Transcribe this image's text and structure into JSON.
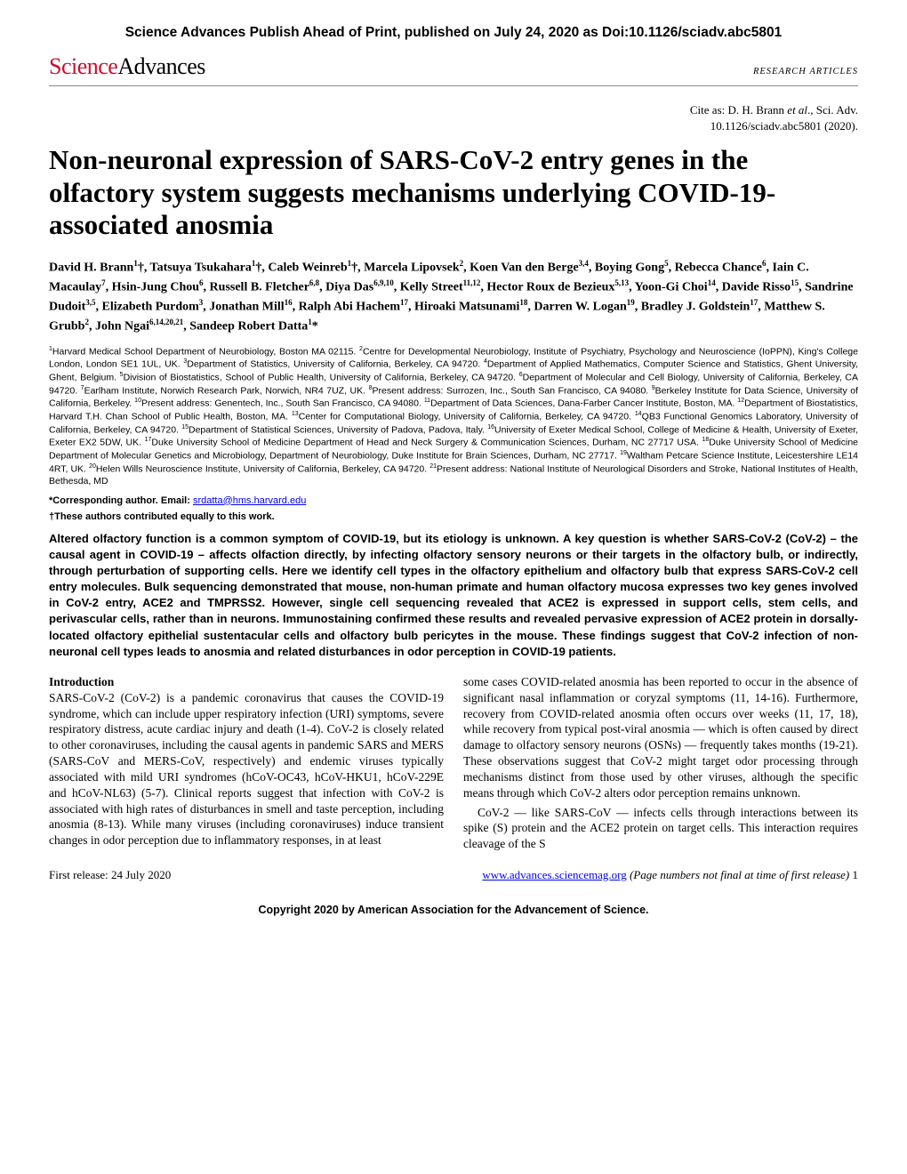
{
  "header": {
    "ahead_of_print": "Science Advances Publish Ahead of Print, published on July 24, 2020 as Doi:10.1126/sciadv.abc5801",
    "journal_red": "Science",
    "journal_black": "Advances",
    "article_type": "RESEARCH ARTICLES"
  },
  "citation": {
    "line1_pre": "Cite as: D. H. Brann ",
    "line1_etal": "et al",
    "line1_post": "., Sci. Adv.",
    "line2": "10.1126/sciadv.abc5801 (2020)."
  },
  "title": "Non-neuronal expression of SARS-CoV-2 entry genes in the olfactory system suggests mechanisms underlying COVID-19-associated anosmia",
  "authors_html": "David H. Brann<sup>1</sup>†, Tatsuya Tsukahara<sup>1</sup>†, Caleb Weinreb<sup>1</sup>†, Marcela Lipovsek<sup>2</sup>, Koen Van den Berge<sup>3,4</sup>, Boying Gong<sup>5</sup>, Rebecca Chance<sup>6</sup>, Iain C. Macaulay<sup>7</sup>, Hsin-Jung Chou<sup>6</sup>, Russell B. Fletcher<sup>6,8</sup>, Diya Das<sup>6,9,10</sup>, Kelly Street<sup>11,12</sup>, Hector Roux de Bezieux<sup>5,13</sup>, Yoon-Gi Choi<sup>14</sup>, Davide Risso<sup>15</sup>, Sandrine Dudoit<sup>3,5</sup>, Elizabeth Purdom<sup>3</sup>, Jonathan Mill<sup>16</sup>, Ralph Abi Hachem<sup>17</sup>, Hiroaki Matsunami<sup>18</sup>, Darren W. Logan<sup>19</sup>, Bradley J. Goldstein<sup>17</sup>, Matthew S. Grubb<sup>2</sup>, John Ngai<sup>6,14,20,21</sup>, Sandeep Robert Datta<sup>1</sup>*",
  "affiliations_html": "<sup>1</sup>Harvard Medical School Department of Neurobiology, Boston MA 02115. <sup>2</sup>Centre for Developmental Neurobiology, Institute of Psychiatry, Psychology and Neuroscience (IoPPN), King's College London, London SE1 1UL, UK. <sup>3</sup>Department of Statistics, University of California, Berkeley, CA 94720. <sup>4</sup>Department of Applied Mathematics, Computer Science and Statistics, Ghent University, Ghent, Belgium. <sup>5</sup>Division of Biostatistics, School of Public Health, University of California, Berkeley, CA 94720. <sup>6</sup>Department of Molecular and Cell Biology, University of California, Berkeley, CA 94720. <sup>7</sup>Earlham Institute, Norwich Research Park, Norwich, NR4 7UZ, UK. <sup>8</sup>Present address: Surrozen, Inc., South San Francisco, CA 94080. <sup>9</sup>Berkeley Institute for Data Science, University of California, Berkeley. <sup>10</sup>Present address: Genentech, Inc., South San Francisco, CA 94080. <sup>11</sup>Department of Data Sciences, Dana-Farber Cancer Institute, Boston, MA. <sup>12</sup>Department of Biostatistics, Harvard T.H. Chan School of Public Health, Boston, MA. <sup>13</sup>Center for Computational Biology, University of California, Berkeley, CA 94720. <sup>14</sup>QB3 Functional Genomics Laboratory, University of California, Berkeley, CA 94720. <sup>15</sup>Department of Statistical Sciences, University of Padova, Padova, Italy. <sup>16</sup>University of Exeter Medical School, College of Medicine & Health, University of Exeter, Exeter EX2 5DW, UK. <sup>17</sup>Duke University School of Medicine Department of Head and Neck Surgery & Communication Sciences, Durham, NC 27717 USA. <sup>18</sup>Duke University School of Medicine Department of Molecular Genetics and Microbiology, Department of Neurobiology, Duke Institute for Brain Sciences, Durham, NC 27717. <sup>19</sup>Waltham Petcare Science Institute, Leicestershire LE14 4RT, UK. <sup>20</sup>Helen Wills Neuroscience Institute, University of California, Berkeley, CA 94720. <sup>21</sup>Present address: National Institute of Neurological Disorders and Stroke, National Institutes of Health, Bethesda, MD",
  "corresponding": {
    "label": "*Corresponding author. Email: ",
    "email": "srdatta@hms.harvard.edu"
  },
  "equal": "†These authors contributed equally to this work.",
  "abstract": "Altered olfactory function is a common symptom of COVID-19, but its etiology is unknown. A key question is whether SARS-CoV-2 (CoV-2) – the causal agent in COVID-19 – affects olfaction directly, by infecting olfactory sensory neurons or their targets in the olfactory bulb, or indirectly, through perturbation of supporting cells. Here we identify cell types in the olfactory epithelium and olfactory bulb that express SARS-CoV-2 cell entry molecules. Bulk sequencing demonstrated that mouse, non-human primate and human olfactory mucosa expresses two key genes involved in CoV-2 entry, ACE2 and TMPRSS2. However, single cell sequencing revealed that ACE2 is expressed in support cells, stem cells, and perivascular cells, rather than in neurons. Immunostaining confirmed these results and revealed pervasive expression of ACE2 protein in dorsally-located olfactory epithelial sustentacular cells and olfactory bulb pericytes in the mouse. These findings suggest that CoV-2 infection of non-neuronal cell types leads to anosmia and related disturbances in odor perception in COVID-19 patients.",
  "body": {
    "section_head": "Introduction",
    "col1": "SARS-CoV-2 (CoV-2) is a pandemic coronavirus that causes the COVID-19 syndrome, which can include upper respiratory infection (URI) symptoms, severe respiratory distress, acute cardiac injury and death (1-4). CoV-2 is closely related to other coronaviruses, including the causal agents in pandemic SARS and MERS (SARS-CoV and MERS-CoV, respectively) and endemic viruses typically associated with mild URI syndromes (hCoV-OC43, hCoV-HKU1, hCoV-229E and hCoV-NL63) (5-7). Clinical reports suggest that infection with CoV-2 is associated with high rates of disturbances in smell and taste perception, including anosmia (8-13). While many viruses (including coronaviruses) induce transient changes in odor perception due to inflammatory responses, in at least",
    "col2": "some cases COVID-related anosmia has been reported to occur in the absence of significant nasal inflammation or coryzal symptoms (11, 14-16). Furthermore, recovery from COVID-related anosmia often occurs over weeks (11, 17, 18), while recovery from typical post-viral anosmia — which is often caused by direct damage to olfactory sensory neurons (OSNs) — frequently takes months (19-21). These observations suggest that CoV-2 might target odor processing through mechanisms distinct from those used by other viruses, although the specific means through which CoV-2 alters odor perception remains unknown.",
    "col2_p2": "CoV-2 — like SARS-CoV — infects cells through interactions between its spike (S) protein and the ACE2 protein on target cells. This interaction requires cleavage of the S"
  },
  "footer": {
    "release": "First release: 24 July 2020",
    "url": "www.advances.sciencemag.org",
    "note": " (Page numbers not final at time of first release)  ",
    "page": "1"
  },
  "copyright": "Copyright 2020 by American Association for the Advancement of Science."
}
